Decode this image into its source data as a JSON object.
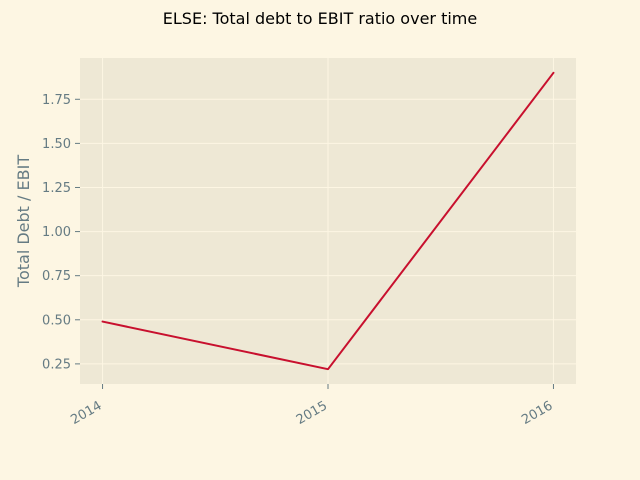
{
  "colors": {
    "figure_background": "#fdf6e3",
    "plot_background": "#eee8d5",
    "grid": "#fdf6e3",
    "line": "#c8102e",
    "tick_text": "#657b83"
  },
  "chart_data": {
    "type": "line",
    "title": "ELSE: Total debt to EBIT ratio over time",
    "xlabel": "",
    "ylabel": "Total Debt / EBIT",
    "x": [
      "2014",
      "2015",
      "2016"
    ],
    "series": [
      {
        "values": [
          0.49,
          0.22,
          1.9
        ]
      }
    ],
    "xlim": [
      2013.9,
      2016.1
    ],
    "ylim": [
      0.136,
      1.984
    ],
    "yticks": [
      "0.25",
      "0.50",
      "0.75",
      "1.00",
      "1.25",
      "1.50",
      "1.75"
    ],
    "grid": true,
    "legend": "none"
  }
}
